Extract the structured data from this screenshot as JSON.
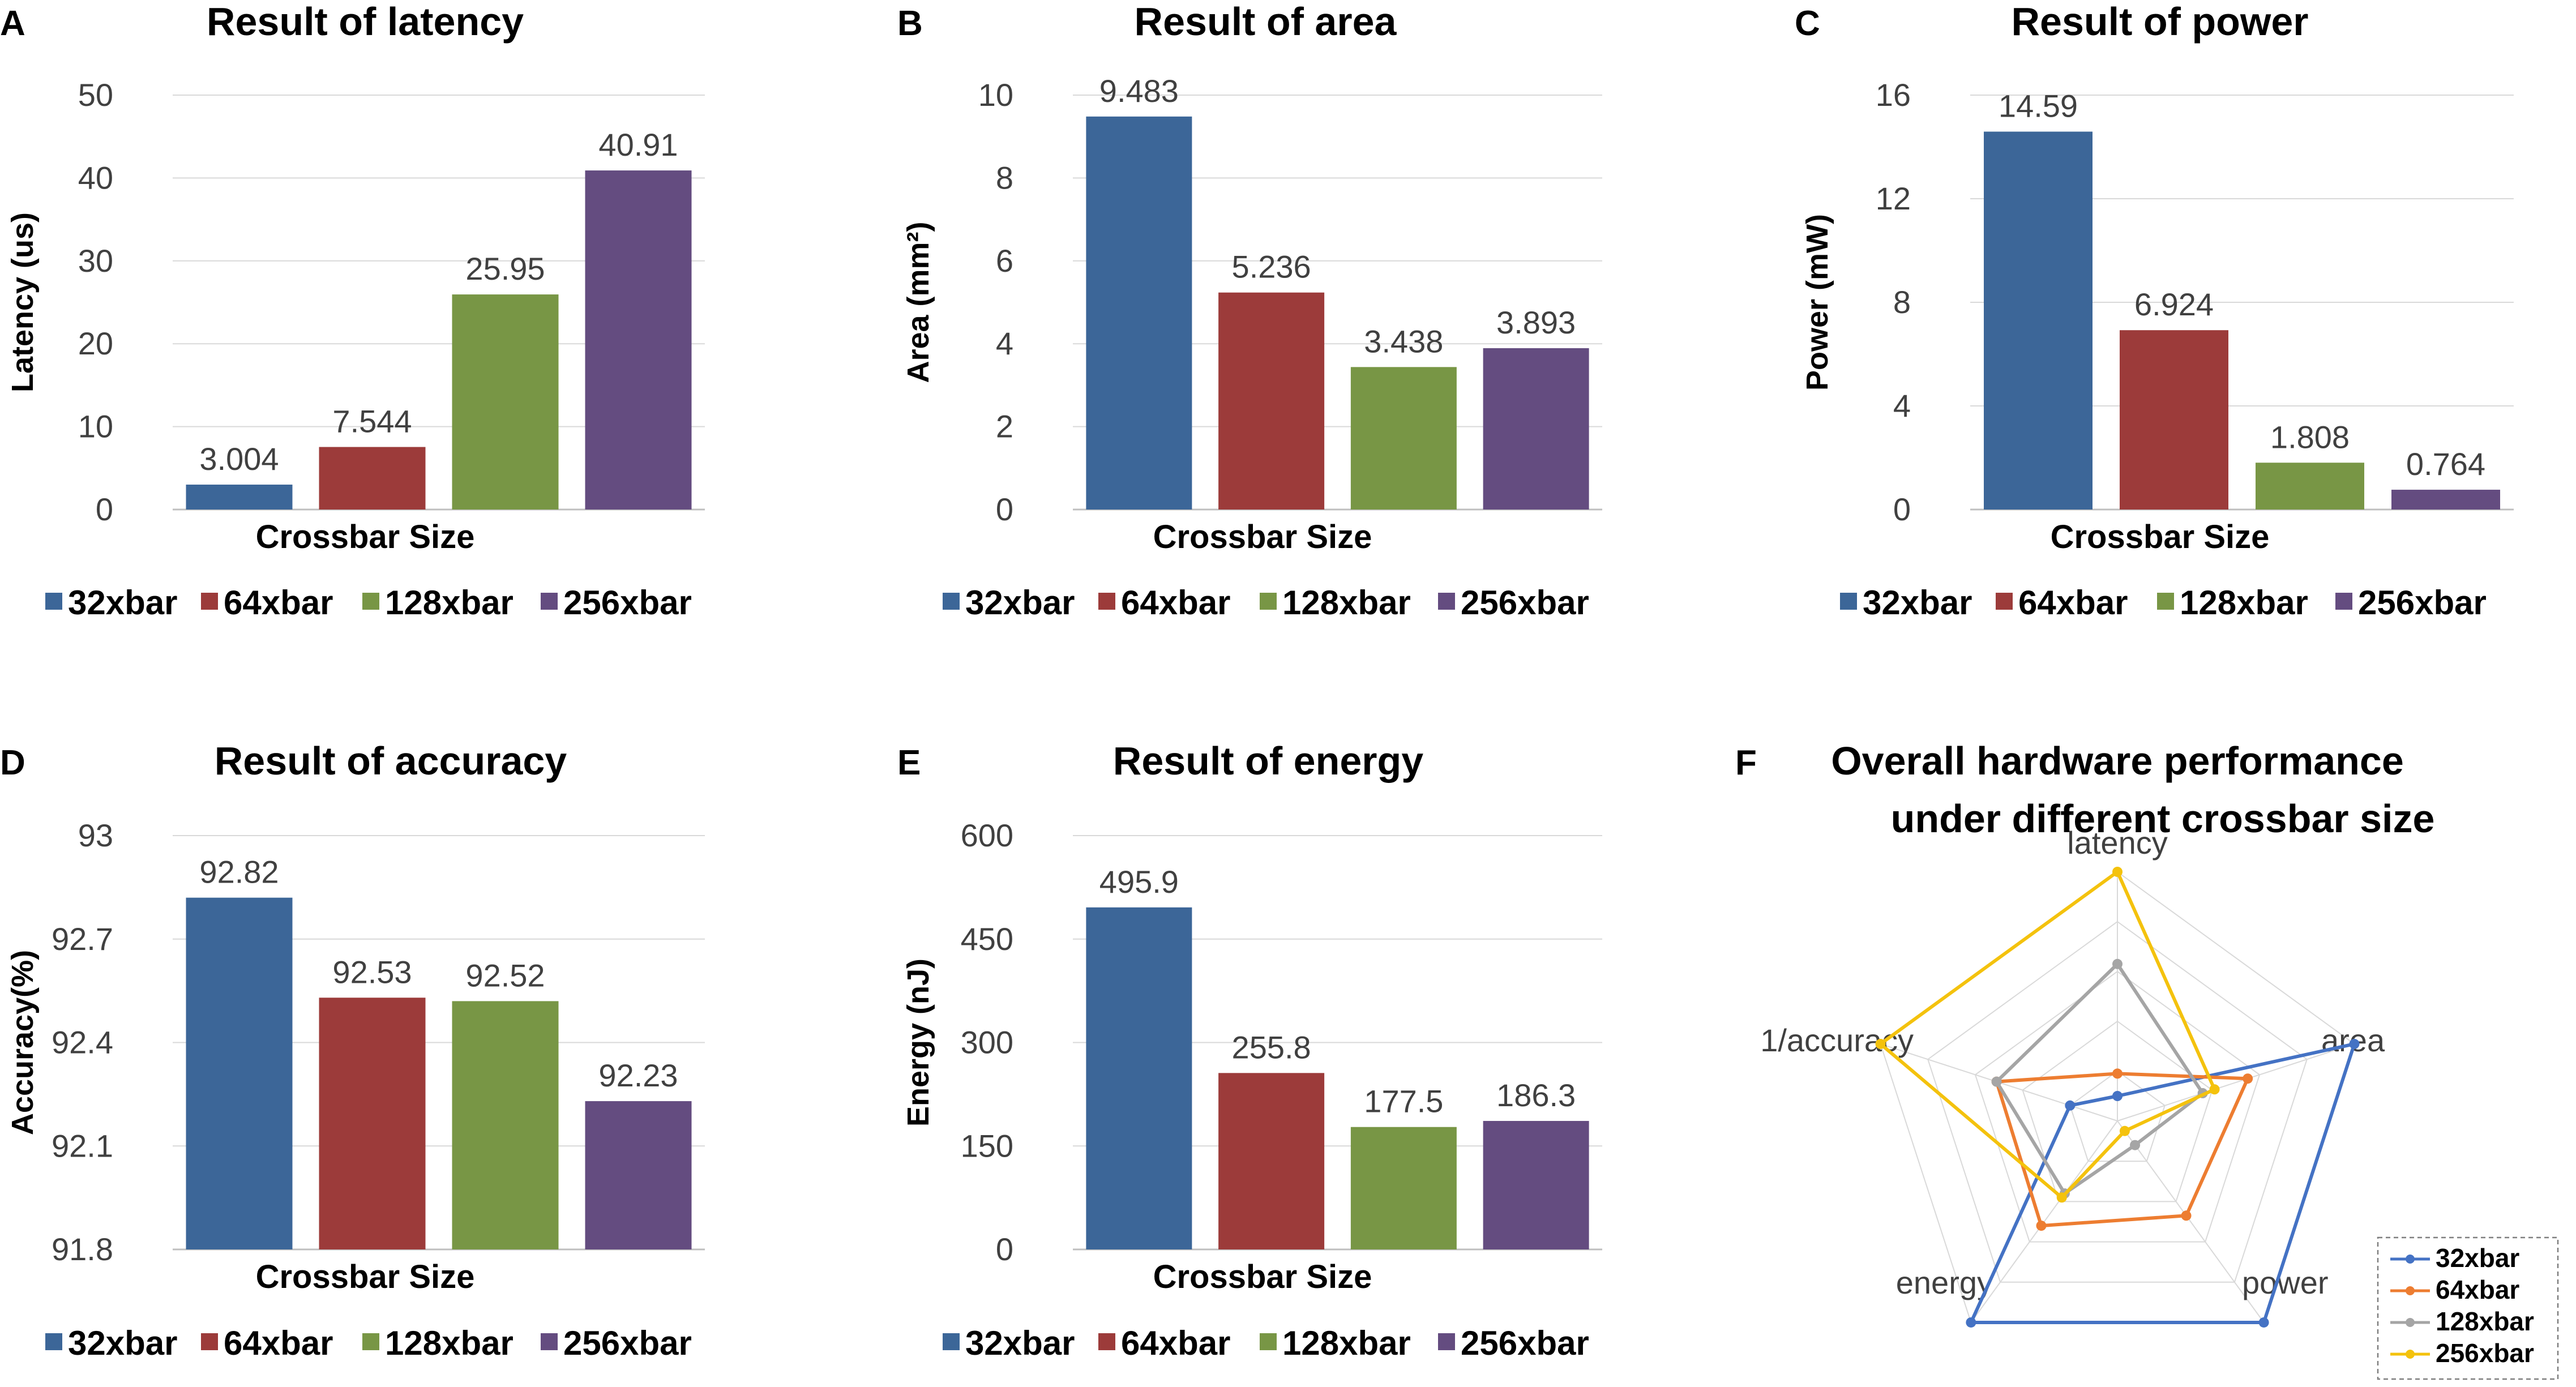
{
  "chart_data": [
    {
      "panel": "A",
      "type": "bar",
      "title": "Result of latency",
      "xlabel": "Crossbar Size",
      "ylabel": "Latency (us)",
      "ylim": [
        0,
        50
      ],
      "yticks": [
        0,
        10,
        20,
        30,
        40,
        50
      ],
      "ytick_labels": [
        "0",
        "10",
        "20",
        "30",
        "40",
        "50"
      ],
      "categories": [
        "32xbar",
        "64xbar",
        "128xbar",
        "256xbar"
      ],
      "values": [
        3.004,
        7.544,
        25.95,
        40.91
      ],
      "value_labels": [
        "3.004",
        "7.544",
        "25.95",
        "40.91"
      ],
      "colors": [
        "#3c6698",
        "#9c3b3a",
        "#789645",
        "#644c80"
      ],
      "legend": [
        "32xbar",
        "64xbar",
        "128xbar",
        "256xbar"
      ],
      "grid": true
    },
    {
      "panel": "B",
      "type": "bar",
      "title": "Result of area",
      "xlabel": "Crossbar Size",
      "ylabel": "Area (mm²)",
      "ylim": [
        0,
        10
      ],
      "yticks": [
        0,
        2,
        4,
        6,
        8,
        10
      ],
      "ytick_labels": [
        "0",
        "2",
        "4",
        "6",
        "8",
        "10"
      ],
      "categories": [
        "32xbar",
        "64xbar",
        "128xbar",
        "256xbar"
      ],
      "values": [
        9.483,
        5.236,
        3.438,
        3.893
      ],
      "value_labels": [
        "9.483",
        "5.236",
        "3.438",
        "3.893"
      ],
      "colors": [
        "#3c6698",
        "#9c3b3a",
        "#789645",
        "#644c80"
      ],
      "legend": [
        "32xbar",
        "64xbar",
        "128xbar",
        "256xbar"
      ],
      "grid": true
    },
    {
      "panel": "C",
      "type": "bar",
      "title": "Result of power",
      "xlabel": "Crossbar Size",
      "ylabel": "Power (mW)",
      "ylim": [
        0,
        16
      ],
      "yticks": [
        0,
        4,
        8,
        12,
        16
      ],
      "ytick_labels": [
        "0",
        "4",
        "8",
        "12",
        "16"
      ],
      "categories": [
        "32xbar",
        "64xbar",
        "128xbar",
        "256xbar"
      ],
      "values": [
        14.59,
        6.924,
        1.808,
        0.764
      ],
      "value_labels": [
        "14.59",
        "6.924",
        "1.808",
        "0.764"
      ],
      "colors": [
        "#3c6698",
        "#9c3b3a",
        "#789645",
        "#644c80"
      ],
      "legend": [
        "32xbar",
        "64xbar",
        "128xbar",
        "256xbar"
      ],
      "grid": true
    },
    {
      "panel": "D",
      "type": "bar",
      "title": "Result of accuracy",
      "xlabel": "Crossbar Size",
      "ylabel": "Accuracy(%)",
      "ylim": [
        91.8,
        93
      ],
      "yticks": [
        91.8,
        92.1,
        92.4,
        92.7,
        93
      ],
      "ytick_labels": [
        "91.8",
        "92.1",
        "92.4",
        "92.7",
        "93"
      ],
      "categories": [
        "32xbar",
        "64xbar",
        "128xbar",
        "256xbar"
      ],
      "values": [
        92.82,
        92.53,
        92.52,
        92.23
      ],
      "value_labels": [
        "92.82",
        "92.53",
        "92.52",
        "92.23"
      ],
      "colors": [
        "#3c6698",
        "#9c3b3a",
        "#789645",
        "#644c80"
      ],
      "legend": [
        "32xbar",
        "64xbar",
        "128xbar",
        "256xbar"
      ],
      "grid": true
    },
    {
      "panel": "E",
      "type": "bar",
      "title": "Result of energy",
      "xlabel": "Crossbar Size",
      "ylabel": "Energy (nJ)",
      "ylim": [
        0,
        600
      ],
      "yticks": [
        0,
        150,
        300,
        450,
        600
      ],
      "ytick_labels": [
        "0",
        "150",
        "300",
        "450",
        "600"
      ],
      "categories": [
        "32xbar",
        "64xbar",
        "128xbar",
        "256xbar"
      ],
      "values": [
        495.9,
        255.8,
        177.5,
        186.3
      ],
      "value_labels": [
        "495.9",
        "255.8",
        "177.5",
        "186.3"
      ],
      "colors": [
        "#3c6698",
        "#9c3b3a",
        "#789645",
        "#644c80"
      ],
      "legend": [
        "32xbar",
        "64xbar",
        "128xbar",
        "256xbar"
      ],
      "grid": true
    },
    {
      "panel": "F",
      "type": "radar",
      "title_lines": [
        "Overall hardware performance",
        "under different crossbar size"
      ],
      "axes": [
        "latency",
        "area",
        "power",
        "energy",
        "1/accuracy"
      ],
      "rlim": [
        0,
        1
      ],
      "rings": 5,
      "series": [
        {
          "name": "32xbar",
          "color": "#4472c4",
          "values": [
            0.1,
            1.0,
            1.0,
            1.0,
            0.2
          ]
        },
        {
          "name": "64xbar",
          "color": "#ed7d31",
          "values": [
            0.19,
            0.55,
            0.47,
            0.52,
            0.51
          ]
        },
        {
          "name": "128xbar",
          "color": "#a5a5a5",
          "values": [
            0.63,
            0.36,
            0.12,
            0.36,
            0.51
          ]
        },
        {
          "name": "256xbar",
          "color": "#f4c20d",
          "values": [
            1.0,
            0.41,
            0.05,
            0.38,
            1.0
          ]
        }
      ],
      "legend": [
        "32xbar",
        "64xbar",
        "128xbar",
        "256xbar"
      ],
      "legend_position": "bottom-right"
    }
  ]
}
